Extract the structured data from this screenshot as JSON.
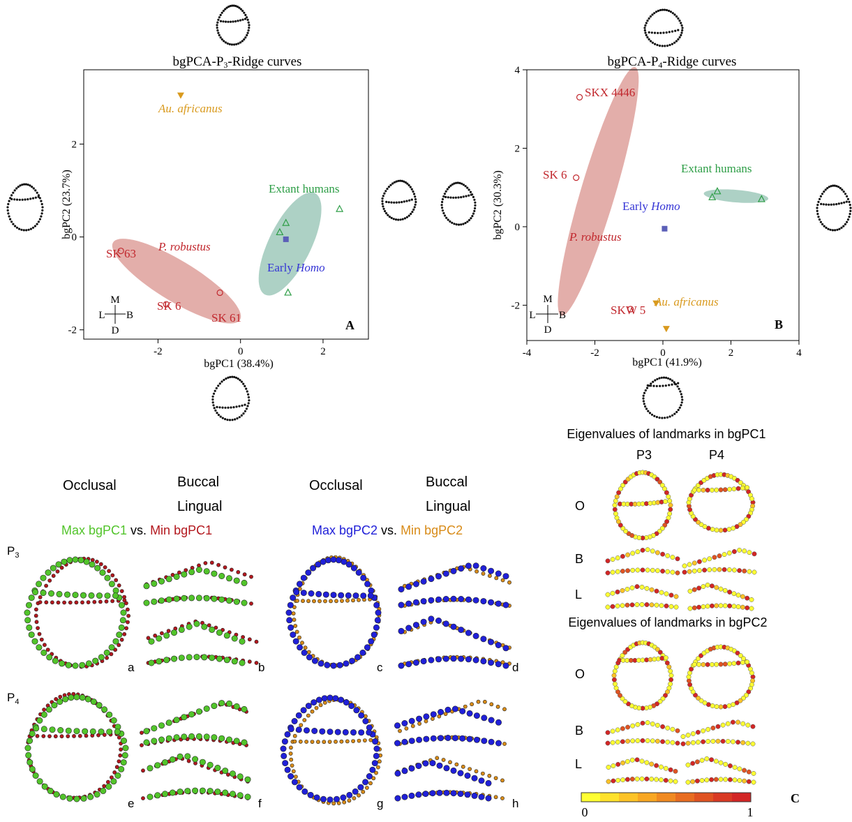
{
  "chart_data": [
    {
      "type": "scatter",
      "title": "bgPCA-P₃-Ridge curves",
      "xlabel": "bgPC1 (38.4%)",
      "ylabel": "bgPC2 (23.7%)",
      "xlim": [
        -3.8,
        3.1
      ],
      "ylim": [
        -2.2,
        3.6
      ],
      "xticks": [
        -2,
        0,
        2
      ],
      "yticks": [
        -2,
        0,
        2
      ],
      "panel_label": "A",
      "orientation": {
        "top": "M",
        "left": "L",
        "right": "B",
        "bottom": "D"
      },
      "groups": [
        {
          "name": "Extant humans",
          "color": "#2e9e47",
          "marker": "triangle",
          "points": [
            [
              1.1,
              0.3
            ],
            [
              0.95,
              0.1
            ],
            [
              2.4,
              0.6
            ],
            [
              1.15,
              -1.2
            ]
          ],
          "ellipse": {
            "cx": 1.2,
            "cy": -0.15,
            "rx": 1.25,
            "ry": 0.5,
            "angle_deg": 60
          }
        },
        {
          "name": "Early Homo",
          "color": "#5b5fb8",
          "marker": "square",
          "points": [
            [
              1.1,
              -0.05
            ]
          ]
        },
        {
          "name": "P. robustus",
          "color": "#c1272d",
          "marker": "circle",
          "points": [
            [
              -2.9,
              -0.3
            ],
            [
              -1.8,
              -1.45
            ],
            [
              -0.5,
              -1.2
            ]
          ],
          "point_labels": [
            "SK 63",
            "SK 6",
            "SK 61"
          ],
          "ellipse": {
            "cx": -1.55,
            "cy": -0.95,
            "rx": 1.75,
            "ry": 0.45,
            "angle_deg": -28
          }
        },
        {
          "name": "Au. africanus",
          "color": "#d99a1e",
          "marker": "down-triangle",
          "points": [
            [
              -1.45,
              3.05
            ]
          ]
        }
      ]
    },
    {
      "type": "scatter",
      "title": "bgPCA-P₄-Ridge curves",
      "xlabel": "bgPC1 (41.9%)",
      "ylabel": "bgPC2 (30.3%)",
      "xlim": [
        -4,
        4
      ],
      "ylim": [
        -2.9,
        4
      ],
      "xticks": [
        -4,
        -2,
        0,
        2,
        4
      ],
      "yticks": [
        -2,
        0,
        2,
        4
      ],
      "panel_label": "B",
      "orientation": {
        "top": "M",
        "left": "L",
        "right": "B",
        "bottom": "D"
      },
      "groups": [
        {
          "name": "Extant humans",
          "color": "#2e9e47",
          "marker": "triangle",
          "points": [
            [
              1.6,
              0.9
            ],
            [
              1.45,
              0.75
            ],
            [
              2.9,
              0.7
            ]
          ],
          "ellipse": {
            "cx": 2.15,
            "cy": 0.78,
            "rx": 0.95,
            "ry": 0.16,
            "angle_deg": -4
          }
        },
        {
          "name": "Early Homo",
          "color": "#5b5fb8",
          "marker": "square",
          "points": [
            [
              0.05,
              -0.05
            ]
          ]
        },
        {
          "name": "P. robustus",
          "color": "#c1272d",
          "marker": "circle",
          "points": [
            [
              -2.45,
              3.3
            ],
            [
              -2.55,
              1.25
            ],
            [
              -0.95,
              -2.1
            ]
          ],
          "point_labels": [
            "SKX 4446",
            "SK 6",
            "SKW 5"
          ],
          "ellipse": {
            "cx": -1.9,
            "cy": 0.9,
            "rx": 3.35,
            "ry": 0.5,
            "angle_deg": 71
          }
        },
        {
          "name": "Au. africanus",
          "color": "#d99a1e",
          "marker": "down-triangle",
          "points": [
            [
              -0.2,
              -1.95
            ],
            [
              0.1,
              -2.6
            ]
          ]
        }
      ]
    }
  ],
  "plotA": {
    "title_main": "bgPCA-P",
    "title_sub": "3",
    "title_tail": "-Ridge curves",
    "xlabel": "bgPC1 (38.4%)",
    "ylabel": "bgPC2 (23.7%)",
    "ticks_x": [
      "-2",
      "0",
      "2"
    ],
    "ticks_y": [
      "2",
      "0",
      "-2"
    ],
    "label_extant": "Extant humans",
    "label_early": "Early ",
    "label_homo": "Homo",
    "label_robustus": "P. robustus",
    "label_africanus": "Au. africanus",
    "label_sk63": "SK 63",
    "label_sk6": "SK 6",
    "label_sk61": "SK 61",
    "panel": "A",
    "compass_m": "M",
    "compass_l": "L",
    "compass_b": "B",
    "compass_d": "D"
  },
  "plotB": {
    "title_main": "bgPCA-P",
    "title_sub": "4",
    "title_tail": "-Ridge curves",
    "xlabel": "bgPC1 (41.9%)",
    "ylabel": "bgPC2 (30.3%)",
    "ticks_x": [
      "-4",
      "-2",
      "0",
      "2",
      "4"
    ],
    "ticks_y": [
      "4",
      "2",
      "0",
      "-2"
    ],
    "label_extant": "Extant humans",
    "label_early": "Early ",
    "label_homo": "Homo",
    "label_robustus": "P. robustus",
    "label_africanus": "Au. africanus",
    "label_skx": "SKX 4446",
    "label_sk6": "SK 6",
    "label_skw": "SKW 5",
    "panel": "B",
    "compass_m": "M",
    "compass_l": "L",
    "compass_b": "B",
    "compass_d": "D"
  },
  "lower": {
    "occlusal_1": "Occlusal",
    "buccal_1": "Buccal",
    "lingual_1": "Lingual",
    "max_pc1": "Max bgPC1",
    "vs_1": " vs. ",
    "min_pc1": "Min bgPC1",
    "occlusal_2": "Occlusal",
    "buccal_2": "Buccal",
    "lingual_2": "Lingual",
    "max_pc2": "Max bgPC2",
    "vs_2": " vs. ",
    "min_pc2": "Min bgPC2",
    "row_p3": "P",
    "row_p3_sub": "3",
    "row_p4": "P",
    "row_p4_sub": "4",
    "letters": [
      "a",
      "b",
      "c",
      "d",
      "e",
      "f",
      "g",
      "h"
    ]
  },
  "panelC": {
    "title_pc1": "Eigenvalues of landmarks in bgPC1",
    "title_pc2": "Eigenvalues of landmarks in bgPC2",
    "col_p3": "P3",
    "col_p4": "P4",
    "row_o": "O",
    "row_b": "B",
    "row_l": "L",
    "scale_min": "0",
    "scale_max": "1",
    "panel": "C",
    "colorbar": [
      "#ffff33",
      "#ffe22c",
      "#fdc327",
      "#f8a723",
      "#f08a21",
      "#e86d21",
      "#e05322",
      "#d93a24",
      "#d32625"
    ]
  },
  "colors": {
    "extant": "#2e9e47",
    "early": "#5b5fb8",
    "robustus": "#c1272d",
    "africanus": "#d99a1e",
    "ellipse_green": "#a9cfc2",
    "ellipse_red": "#e1aaa5",
    "max_pc1": "#52c42b",
    "min_pc1": "#b3181e",
    "max_pc2": "#2020d8",
    "min_pc2": "#d88b18"
  }
}
